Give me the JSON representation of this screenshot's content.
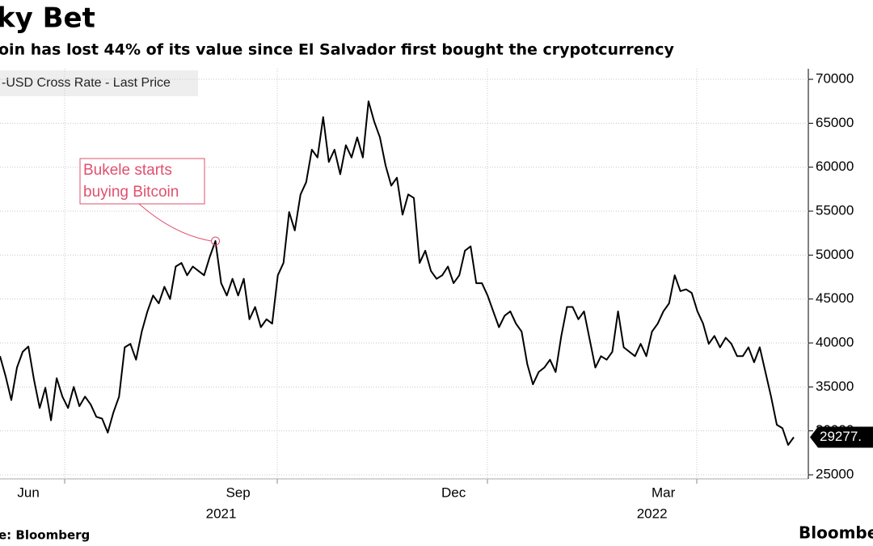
{
  "chart_data": {
    "type": "line",
    "title": "ky Bet",
    "subtitle": "oin has lost 44% of its value since El Salvador first bought the crypotcurrency",
    "source": "e: Bloomberg",
    "brand": "Bloombe",
    "annotation": [
      "Bukele starts",
      "buying Bitcoin"
    ],
    "categories": [
      null,
      null,
      null,
      null,
      null,
      "Jun",
      null,
      null,
      null,
      null,
      null,
      null,
      null,
      null,
      null,
      null,
      null,
      null,
      null,
      null,
      null,
      null,
      null,
      null,
      null,
      null,
      null,
      null,
      null,
      null,
      null,
      null,
      null,
      null,
      null,
      null,
      null,
      null,
      null,
      null,
      null,
      null,
      "Sep",
      null,
      null,
      null,
      null,
      null,
      null,
      null,
      null,
      null,
      null,
      null,
      null,
      null,
      null,
      null,
      null,
      null,
      null,
      null,
      null,
      null,
      null,
      null,
      null,
      null,
      null,
      null,
      null,
      null,
      null,
      null,
      null,
      null,
      null,
      null,
      null,
      null,
      "Dec",
      null,
      null,
      null,
      null,
      null,
      null,
      null,
      null,
      null,
      null,
      null,
      null,
      null,
      null,
      null,
      null,
      null,
      null,
      null,
      null,
      null,
      null,
      null,
      null,
      null,
      null,
      null,
      null,
      null,
      null,
      null,
      null,
      null,
      null,
      null,
      null,
      "Mar",
      null,
      null,
      null,
      null,
      null,
      null,
      null,
      null,
      null,
      null,
      null,
      null,
      null,
      null,
      null,
      null,
      null,
      null,
      null,
      null,
      null,
      null,
      null
    ],
    "category_groups": [
      null,
      null,
      null,
      null,
      null,
      null,
      null,
      null,
      null,
      null,
      null,
      null,
      null,
      null,
      null,
      null,
      null,
      null,
      null,
      null,
      null,
      null,
      null,
      null,
      null,
      null,
      null,
      null,
      null,
      null,
      null,
      null,
      null,
      null,
      null,
      null,
      null,
      null,
      null,
      "2021",
      null,
      null,
      null,
      null,
      null,
      null,
      null,
      null,
      null,
      null,
      null,
      null,
      null,
      null,
      null,
      null,
      null,
      null,
      null,
      null,
      null,
      null,
      null,
      null,
      null,
      null,
      null,
      null,
      null,
      null,
      null,
      null,
      null,
      null,
      null,
      null,
      null,
      null,
      null,
      null,
      null,
      null,
      null,
      null,
      null,
      null,
      null,
      null,
      null,
      null,
      null,
      null,
      null,
      null,
      null,
      null,
      null,
      null,
      null,
      null,
      null,
      null,
      null,
      null,
      null,
      null,
      null,
      null,
      null,
      null,
      null,
      null,
      null,
      null,
      null,
      "2022",
      null,
      null,
      null,
      null,
      null,
      null,
      null,
      null,
      null,
      null,
      null,
      null,
      null,
      null,
      null,
      null,
      null,
      null,
      null,
      null,
      null,
      null,
      null,
      null,
      null
    ],
    "series": [
      {
        "name": "-USD Cross Rate - Last Price",
        "color": "#000000",
        "values": [
          38500,
          36200,
          33500,
          37200,
          39000,
          39600,
          35800,
          32600,
          34900,
          31200,
          36000,
          33900,
          32600,
          35000,
          32800,
          33900,
          33000,
          31600,
          31400,
          29800,
          32100,
          33900,
          39500,
          39900,
          38100,
          41300,
          43600,
          45400,
          44500,
          46400,
          45000,
          48700,
          49100,
          47700,
          48700,
          48200,
          47700,
          49800,
          51600,
          46800,
          45400,
          47300,
          45400,
          47300,
          42700,
          44100,
          41800,
          42700,
          42200,
          47700,
          49100,
          54900,
          52800,
          56900,
          58300,
          62000,
          61100,
          65700,
          60600,
          62000,
          59200,
          62500,
          61100,
          63400,
          61100,
          67500,
          65200,
          63400,
          60200,
          57900,
          58800,
          54600,
          56900,
          56500,
          49100,
          50500,
          48200,
          47300,
          47700,
          48700,
          46800,
          47700,
          50500,
          51000,
          46800,
          46800,
          45400,
          43600,
          41800,
          43100,
          43600,
          42200,
          41300,
          37600,
          35300,
          36700,
          37200,
          38100,
          36700,
          40800,
          44100,
          44100,
          42700,
          43600,
          40400,
          37200,
          38500,
          38100,
          39000,
          43600,
          39500,
          39000,
          38500,
          39900,
          38500,
          41300,
          42200,
          43600,
          44500,
          47700,
          45900,
          46100,
          45700,
          43600,
          42200,
          39900,
          40800,
          39500,
          40600,
          39900,
          38500,
          38500,
          39500,
          37800,
          39500,
          36700,
          33900,
          30700,
          30300,
          28400,
          29277
        ]
      }
    ],
    "last_price": {
      "value": 29277,
      "label": "29277."
    },
    "ylim": [
      24540,
      71200
    ],
    "yticks": [
      25000,
      30000,
      35000,
      40000,
      45000,
      50000,
      55000,
      60000,
      65000,
      70000
    ],
    "grid": true,
    "annotation_color": "#e0506e"
  }
}
